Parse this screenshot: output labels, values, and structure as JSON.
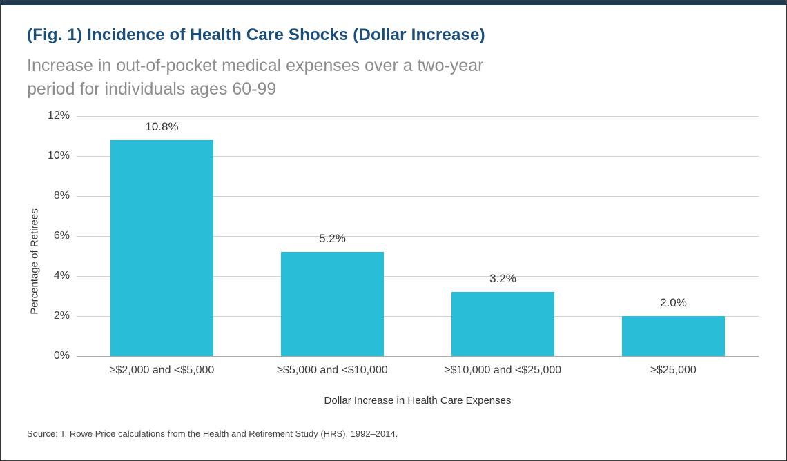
{
  "page": {
    "title": "(Fig. 1) Incidence of Health Care Shocks (Dollar Increase)",
    "subtitle": "Increase in out-of-pocket medical expenses over a two-year period for individuals ages 60-99",
    "source": "Source: T. Rowe Price calculations from the Health and Retirement Study (HRS), 1992–2014."
  },
  "colors": {
    "title_navy": "#1a4e79",
    "subtitle_gray": "#8d8d8d",
    "bar_cyan": "#29bdd7",
    "top_band_navy": "#1d3a57",
    "gridline_gray": "#d2d2d2"
  },
  "chart_data": {
    "type": "bar",
    "title": "(Fig. 1) Incidence of Health Care Shocks (Dollar Increase)",
    "subtitle": "Increase in out-of-pocket medical expenses over a two-year period for individuals ages 60-99",
    "categories": [
      "≥$2,000 and <$5,000",
      "≥$5,000 and <$10,000",
      "≥$10,000 and <$25,000",
      "≥$25,000"
    ],
    "values": [
      10.8,
      5.2,
      3.2,
      2.0
    ],
    "value_labels": [
      "10.8%",
      "5.2%",
      "3.2%",
      "2.0%"
    ],
    "xlabel": "Dollar Increase in Health Care Expenses",
    "ylabel": "Percentage of Retirees",
    "ylim": [
      0,
      12
    ],
    "yticks": [
      0,
      2,
      4,
      6,
      8,
      10,
      12
    ],
    "ytick_labels": [
      "0%",
      "2%",
      "4%",
      "6%",
      "8%",
      "10%",
      "12%"
    ],
    "grid": true,
    "legend": "none",
    "bar_color": "#29bdd7"
  }
}
